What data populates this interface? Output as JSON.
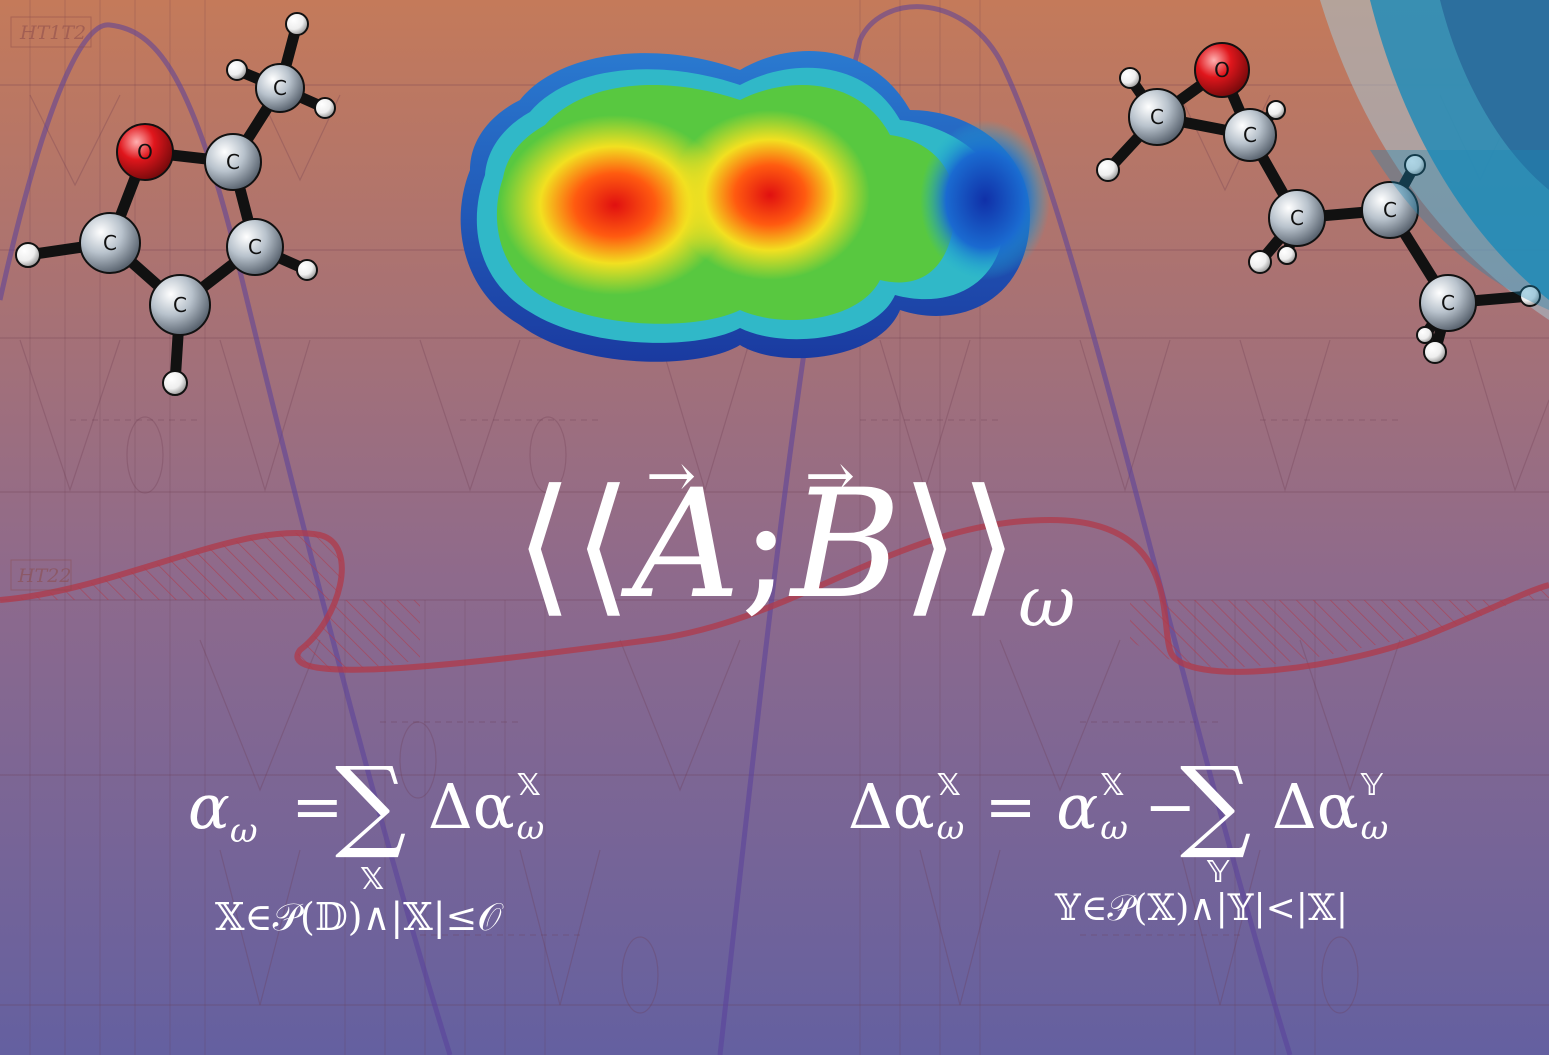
{
  "diagram_labels": {
    "top_label": "HT1T2",
    "mid_label": "HT22"
  },
  "atom_labels": {
    "oxygen": "O",
    "carbon": "C"
  },
  "main_formula": {
    "left": "⟨⟨",
    "a": "A",
    "sep": ";",
    "b": "B",
    "right": "⟩⟩",
    "sub": "ω"
  },
  "formula_left": {
    "lhs": "α",
    "lhs_sub": "ω",
    "eq": "=",
    "sum": "∑",
    "sum_index": "𝕏",
    "term": "Δα",
    "term_sup": "𝕏",
    "term_sub": "ω",
    "condition": "𝕏∈𝒫(𝔻)∧|𝕏|≤𝒪"
  },
  "formula_right": {
    "lhs": "Δα",
    "lhs_sup": "𝕏",
    "lhs_sub": "ω",
    "eq": "=",
    "alpha": "α",
    "alpha_sup": "𝕏",
    "alpha_sub": "ω",
    "minus": "−",
    "sum": "∑",
    "sum_index": "𝕐",
    "term": "Δα",
    "term_sup": "𝕐",
    "term_sub": "ω",
    "condition": "𝕐∈𝒫(𝕏)∧|𝕐|<|𝕏|"
  },
  "colors": {
    "bg_top": "#c47a5a",
    "bg_bottom": "#6460a0",
    "curve_purple": "#5a3f9a",
    "curve_red": "#b03a4a",
    "oxygen_red": "#e0161c",
    "carbon_grey": "#b8c2cc",
    "hydrogen_white": "#f5f5f5",
    "accent_blue": "#1a8ab8"
  }
}
